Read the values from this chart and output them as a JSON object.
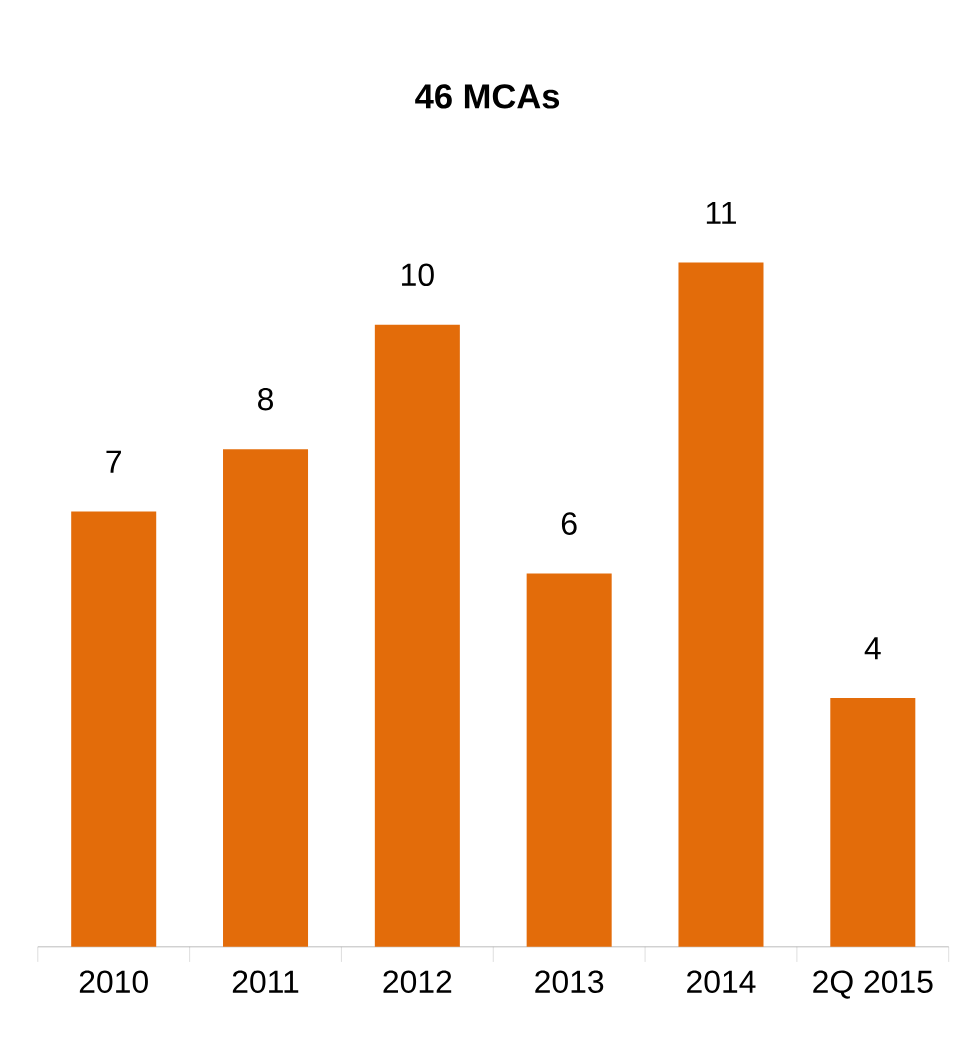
{
  "chart_data": {
    "type": "bar",
    "title": "46 MCAs",
    "categories": [
      "2010",
      "2011",
      "2012",
      "2013",
      "2014",
      "2Q 2015"
    ],
    "values": [
      7,
      8,
      10,
      6,
      11,
      4
    ],
    "color": "#e36c0a",
    "data_labels": true
  }
}
